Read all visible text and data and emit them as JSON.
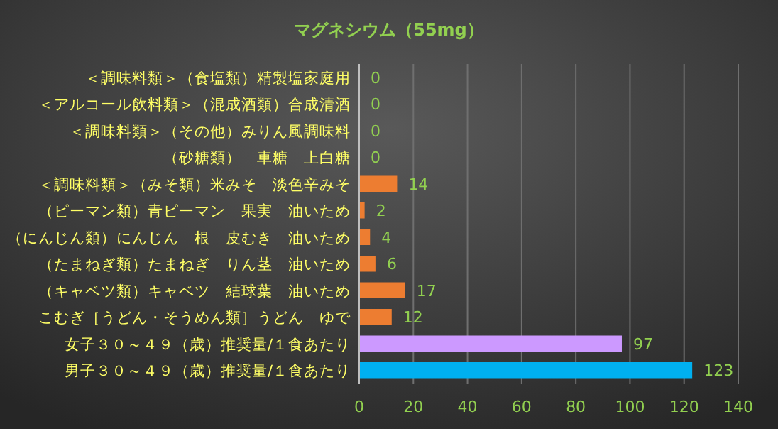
{
  "chart_data": {
    "type": "bar",
    "orientation": "horizontal",
    "title": "マグネシウム（55mg）",
    "categories": [
      "＜調味料類＞（食塩類）精製塩家庭用",
      "＜アルコール飲料類＞（混成酒類）合成清酒",
      "＜調味料類＞（その他）みりん風調味料",
      "（砂糖類）　車糖　上白糖",
      "＜調味料類＞（みそ類）米みそ　淡色辛みそ",
      "（ピーマン類）青ピーマン　果実　油いため",
      "（にんじん類）にんじん　根　皮むき　油いため",
      "（たまねぎ類）たまねぎ　りん茎　油いため",
      "（キャベツ類）キャベツ　結球葉　油いため",
      "こむぎ［うどん・そうめん類］うどん　ゆで",
      "女子３０～４９（歳）推奨量/１食あたり",
      "男子３０～４９（歳）推奨量/１食あたり"
    ],
    "values": [
      0,
      0,
      0,
      0,
      14,
      2,
      4,
      6,
      17,
      12,
      97,
      123
    ],
    "colors": [
      "#ed7d31",
      "#ed7d31",
      "#ed7d31",
      "#ed7d31",
      "#ed7d31",
      "#ed7d31",
      "#ed7d31",
      "#ed7d31",
      "#ed7d31",
      "#ed7d31",
      "#cc99ff",
      "#00b0f0"
    ],
    "xlim": [
      0,
      140
    ],
    "xticks": [
      0,
      20,
      40,
      60,
      80,
      100,
      120,
      140
    ],
    "grid": "x",
    "data_labels": true
  }
}
